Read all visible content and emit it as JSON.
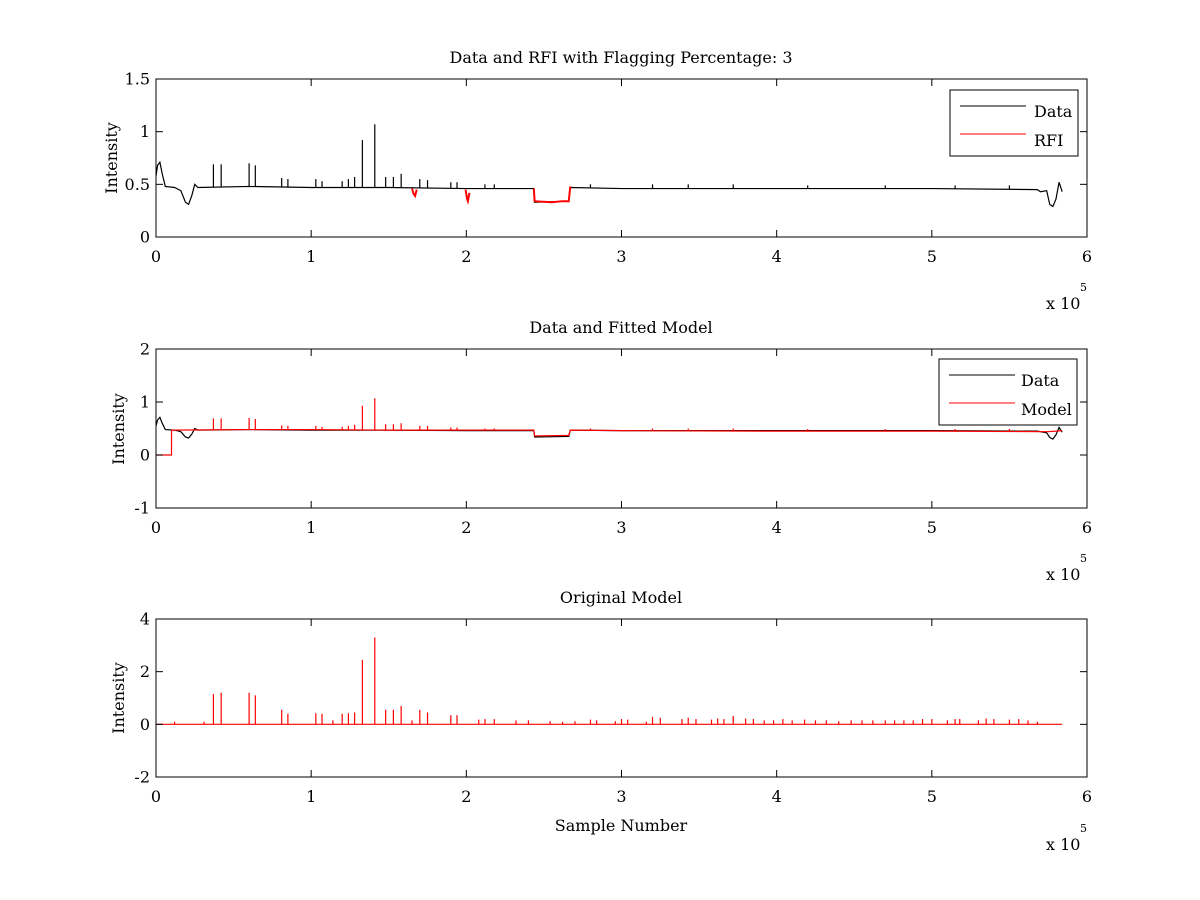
{
  "chart_data": [
    {
      "type": "line",
      "title": "Data and RFI with Flagging Percentage: 3",
      "xlabel": "",
      "ylabel": "Intensity",
      "xlim": [
        0,
        600000
      ],
      "ylim": [
        0,
        1.5
      ],
      "xticks": [
        0,
        100000,
        200000,
        300000,
        400000,
        500000,
        600000
      ],
      "xtick_labels": [
        "0",
        "1",
        "2",
        "3",
        "4",
        "5",
        "6"
      ],
      "yticks": [
        0,
        0.5,
        1,
        1.5
      ],
      "ytick_labels": [
        "0",
        "0.5",
        "1",
        "1.5"
      ],
      "x_multiplier_label": "x 10",
      "x_multiplier_exponent": "5",
      "legend": {
        "placement": "top-right",
        "entries": [
          "Data",
          "RFI"
        ]
      },
      "grid": false,
      "series": [
        {
          "name": "Data",
          "color": "#000000",
          "baseline": [
            [
              0,
              0.58
            ],
            [
              1000,
              0.68
            ],
            [
              2500,
              0.71
            ],
            [
              4000,
              0.6
            ],
            [
              6000,
              0.48
            ],
            [
              12000,
              0.47
            ],
            [
              16000,
              0.44
            ],
            [
              19000,
              0.33
            ],
            [
              21000,
              0.31
            ],
            [
              23000,
              0.39
            ],
            [
              25000,
              0.5
            ],
            [
              27000,
              0.47
            ],
            [
              60000,
              0.48
            ],
            [
              100000,
              0.47
            ],
            [
              150000,
              0.47
            ],
            [
              200000,
              0.46
            ],
            [
              243500,
              0.46
            ],
            [
              244000,
              0.33
            ],
            [
              266000,
              0.34
            ],
            [
              267000,
              0.47
            ],
            [
              300000,
              0.46
            ],
            [
              400000,
              0.46
            ],
            [
              500000,
              0.46
            ],
            [
              568000,
              0.45
            ],
            [
              570000,
              0.43
            ],
            [
              574000,
              0.44
            ],
            [
              576000,
              0.31
            ],
            [
              578000,
              0.29
            ],
            [
              580000,
              0.36
            ],
            [
              582000,
              0.52
            ],
            [
              584000,
              0.43
            ]
          ],
          "spikes": [
            [
              37000,
              0.69
            ],
            [
              42000,
              0.69
            ],
            [
              60000,
              0.7
            ],
            [
              64000,
              0.68
            ],
            [
              81000,
              0.56
            ],
            [
              85000,
              0.55
            ],
            [
              103000,
              0.55
            ],
            [
              107000,
              0.53
            ],
            [
              120000,
              0.53
            ],
            [
              124000,
              0.55
            ],
            [
              128000,
              0.57
            ],
            [
              133000,
              0.92
            ],
            [
              141000,
              1.07
            ],
            [
              148000,
              0.57
            ],
            [
              153000,
              0.57
            ],
            [
              158000,
              0.6
            ],
            [
              170000,
              0.55
            ],
            [
              175000,
              0.54
            ],
            [
              190000,
              0.52
            ],
            [
              194000,
              0.52
            ],
            [
              212000,
              0.5
            ],
            [
              218000,
              0.5
            ],
            [
              280000,
              0.5
            ],
            [
              320000,
              0.5
            ],
            [
              343000,
              0.5
            ],
            [
              372000,
              0.5
            ],
            [
              420000,
              0.49
            ],
            [
              470000,
              0.49
            ],
            [
              515000,
              0.49
            ],
            [
              550000,
              0.49
            ]
          ]
        },
        {
          "name": "RFI",
          "color": "#ff0000",
          "segments": [
            [
              [
                165000,
                0.46
              ],
              [
                166000,
                0.41
              ],
              [
                167000,
                0.39
              ],
              [
                168000,
                0.45
              ]
            ],
            [
              [
                199500,
                0.45
              ],
              [
                200500,
                0.36
              ],
              [
                201000,
                0.34
              ],
              [
                202000,
                0.42
              ]
            ],
            [
              [
                243500,
                0.46
              ],
              [
                244000,
                0.34
              ],
              [
                255000,
                0.33
              ],
              [
                262000,
                0.34
              ],
              [
                266000,
                0.34
              ],
              [
                266500,
                0.41
              ],
              [
                267000,
                0.48
              ]
            ]
          ]
        }
      ]
    },
    {
      "type": "line",
      "title": "Data and Fitted Model",
      "xlabel": "",
      "ylabel": "Intensity",
      "xlim": [
        0,
        600000
      ],
      "ylim": [
        -1,
        2
      ],
      "xticks": [
        0,
        100000,
        200000,
        300000,
        400000,
        500000,
        600000
      ],
      "xtick_labels": [
        "0",
        "1",
        "2",
        "3",
        "4",
        "5",
        "6"
      ],
      "yticks": [
        -1,
        0,
        1,
        2
      ],
      "ytick_labels": [
        "-1",
        "0",
        "1",
        "2"
      ],
      "x_multiplier_label": "x 10",
      "x_multiplier_exponent": "5",
      "legend": {
        "placement": "top-right",
        "entries": [
          "Data",
          "Model"
        ]
      },
      "grid": false,
      "series": [
        {
          "name": "Data",
          "color": "#000000",
          "baseline": [
            [
              0,
              0.55
            ],
            [
              1000,
              0.66
            ],
            [
              2500,
              0.71
            ],
            [
              4000,
              0.6
            ],
            [
              6000,
              0.48
            ],
            [
              12000,
              0.47
            ],
            [
              16000,
              0.44
            ],
            [
              19000,
              0.34
            ],
            [
              21000,
              0.32
            ],
            [
              23000,
              0.39
            ],
            [
              25000,
              0.5
            ],
            [
              27000,
              0.47
            ],
            [
              60000,
              0.48
            ],
            [
              100000,
              0.47
            ],
            [
              150000,
              0.47
            ],
            [
              200000,
              0.46
            ],
            [
              243500,
              0.46
            ],
            [
              244000,
              0.34
            ],
            [
              266000,
              0.35
            ],
            [
              267000,
              0.47
            ],
            [
              300000,
              0.46
            ],
            [
              400000,
              0.46
            ],
            [
              500000,
              0.46
            ],
            [
              568000,
              0.45
            ],
            [
              574000,
              0.42
            ],
            [
              576000,
              0.33
            ],
            [
              578000,
              0.3
            ],
            [
              580000,
              0.38
            ],
            [
              582000,
              0.52
            ],
            [
              584000,
              0.43
            ]
          ]
        },
        {
          "name": "Model",
          "color": "#ff0000",
          "baseline": [
            [
              0,
              0
            ],
            [
              10000,
              0
            ],
            [
              10000,
              0.47
            ],
            [
              60000,
              0.48
            ],
            [
              100000,
              0.48
            ],
            [
              150000,
              0.47
            ],
            [
              200000,
              0.47
            ],
            [
              243500,
              0.47
            ],
            [
              244000,
              0.36
            ],
            [
              266000,
              0.37
            ],
            [
              267000,
              0.47
            ],
            [
              300000,
              0.46
            ],
            [
              400000,
              0.45
            ],
            [
              500000,
              0.45
            ],
            [
              575000,
              0.44
            ],
            [
              580000,
              0.45
            ],
            [
              584000,
              0.46
            ]
          ],
          "spikes": [
            [
              37000,
              0.69
            ],
            [
              42000,
              0.69
            ],
            [
              60000,
              0.7
            ],
            [
              64000,
              0.68
            ],
            [
              81000,
              0.56
            ],
            [
              85000,
              0.55
            ],
            [
              103000,
              0.55
            ],
            [
              107000,
              0.53
            ],
            [
              120000,
              0.53
            ],
            [
              124000,
              0.55
            ],
            [
              128000,
              0.57
            ],
            [
              133000,
              0.93
            ],
            [
              141000,
              1.07
            ],
            [
              148000,
              0.58
            ],
            [
              153000,
              0.58
            ],
            [
              158000,
              0.6
            ],
            [
              170000,
              0.55
            ],
            [
              175000,
              0.55
            ],
            [
              190000,
              0.52
            ],
            [
              194000,
              0.52
            ],
            [
              212000,
              0.5
            ],
            [
              218000,
              0.5
            ],
            [
              280000,
              0.5
            ],
            [
              320000,
              0.5
            ],
            [
              343000,
              0.5
            ],
            [
              372000,
              0.5
            ],
            [
              420000,
              0.49
            ],
            [
              470000,
              0.49
            ],
            [
              515000,
              0.49
            ],
            [
              550000,
              0.49
            ]
          ]
        }
      ]
    },
    {
      "type": "line",
      "title": "Original Model",
      "xlabel": "Sample Number",
      "ylabel": "Intensity",
      "xlim": [
        0,
        600000
      ],
      "ylim": [
        -2,
        4
      ],
      "xticks": [
        0,
        100000,
        200000,
        300000,
        400000,
        500000,
        600000
      ],
      "xtick_labels": [
        "0",
        "1",
        "2",
        "3",
        "4",
        "5",
        "6"
      ],
      "yticks": [
        -2,
        0,
        2,
        4
      ],
      "ytick_labels": [
        "-2",
        "0",
        "2",
        "4"
      ],
      "x_multiplier_label": "x 10",
      "x_multiplier_exponent": "5",
      "legend": null,
      "grid": false,
      "series": [
        {
          "name": "",
          "color": "#ff0000",
          "baseline": [
            [
              0,
              0
            ],
            [
              584000,
              0
            ]
          ],
          "spikes": [
            [
              12000,
              0.1
            ],
            [
              31000,
              0.1
            ],
            [
              37000,
              1.15
            ],
            [
              42000,
              1.2
            ],
            [
              60000,
              1.2
            ],
            [
              64000,
              1.1
            ],
            [
              81000,
              0.55
            ],
            [
              85000,
              0.4
            ],
            [
              103000,
              0.42
            ],
            [
              107000,
              0.4
            ],
            [
              114000,
              0.15
            ],
            [
              120000,
              0.4
            ],
            [
              124000,
              0.42
            ],
            [
              128000,
              0.45
            ],
            [
              133000,
              2.45
            ],
            [
              141000,
              3.3
            ],
            [
              148000,
              0.55
            ],
            [
              153000,
              0.55
            ],
            [
              158000,
              0.7
            ],
            [
              165000,
              0.15
            ],
            [
              170000,
              0.55
            ],
            [
              175000,
              0.45
            ],
            [
              190000,
              0.35
            ],
            [
              194000,
              0.35
            ],
            [
              208000,
              0.18
            ],
            [
              212000,
              0.2
            ],
            [
              218000,
              0.2
            ],
            [
              232000,
              0.15
            ],
            [
              240000,
              0.15
            ],
            [
              254000,
              0.12
            ],
            [
              262000,
              0.1
            ],
            [
              270000,
              0.12
            ],
            [
              280000,
              0.18
            ],
            [
              284000,
              0.15
            ],
            [
              296000,
              0.12
            ],
            [
              300000,
              0.2
            ],
            [
              304000,
              0.18
            ],
            [
              316000,
              0.1
            ],
            [
              320000,
              0.28
            ],
            [
              325000,
              0.25
            ],
            [
              339000,
              0.2
            ],
            [
              343000,
              0.25
            ],
            [
              348000,
              0.2
            ],
            [
              358000,
              0.18
            ],
            [
              362000,
              0.22
            ],
            [
              366000,
              0.2
            ],
            [
              372000,
              0.32
            ],
            [
              380000,
              0.22
            ],
            [
              385000,
              0.2
            ],
            [
              392000,
              0.15
            ],
            [
              398000,
              0.15
            ],
            [
              404000,
              0.2
            ],
            [
              410000,
              0.15
            ],
            [
              418000,
              0.18
            ],
            [
              425000,
              0.15
            ],
            [
              432000,
              0.15
            ],
            [
              440000,
              0.12
            ],
            [
              448000,
              0.15
            ],
            [
              455000,
              0.15
            ],
            [
              462000,
              0.15
            ],
            [
              470000,
              0.15
            ],
            [
              476000,
              0.15
            ],
            [
              482000,
              0.15
            ],
            [
              488000,
              0.15
            ],
            [
              494000,
              0.2
            ],
            [
              500000,
              0.2
            ],
            [
              510000,
              0.15
            ],
            [
              515000,
              0.2
            ],
            [
              518000,
              0.2
            ],
            [
              530000,
              0.15
            ],
            [
              535000,
              0.22
            ],
            [
              540000,
              0.2
            ],
            [
              550000,
              0.18
            ],
            [
              556000,
              0.2
            ],
            [
              562000,
              0.15
            ],
            [
              568000,
              0.1
            ]
          ]
        }
      ]
    }
  ]
}
